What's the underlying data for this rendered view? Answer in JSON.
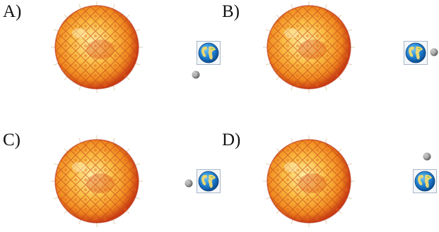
{
  "options": [
    {
      "label": "A)",
      "sun_icon": "sun-icon",
      "earth_icon": "earth-icon",
      "moon_icon": "moon-icon"
    },
    {
      "label": "B)",
      "sun_icon": "sun-icon",
      "earth_icon": "earth-icon",
      "moon_icon": "moon-icon"
    },
    {
      "label": "C)",
      "sun_icon": "sun-icon",
      "earth_icon": "earth-icon",
      "moon_icon": "moon-icon"
    },
    {
      "label": "D)",
      "sun_icon": "sun-icon",
      "earth_icon": "earth-icon",
      "moon_icon": "moon-icon"
    }
  ],
  "colors": {
    "sun_core": "#fff2a8",
    "sun_mid": "#f7a12a",
    "sun_edge": "#c83a12",
    "earth_ocean": "#1d7ed0",
    "earth_land": "#e8d774",
    "moon": "#8c8c8c",
    "icon_frame": "#a9b6c6"
  }
}
